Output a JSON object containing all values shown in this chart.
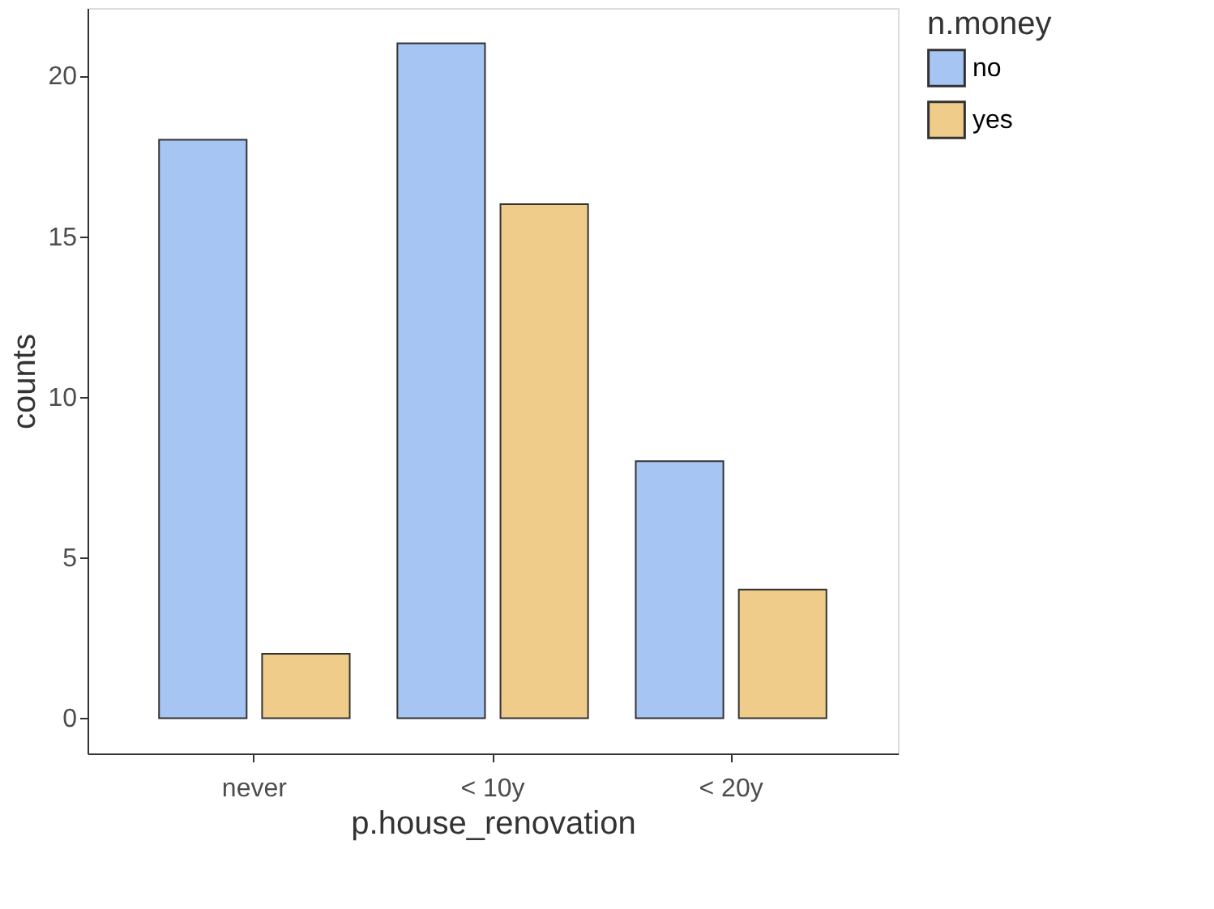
{
  "chart_data": {
    "type": "bar",
    "xlabel": "p.house_renovation",
    "ylabel": "counts",
    "legend_title": "n.money",
    "categories": [
      "never",
      "< 10y",
      "< 20y"
    ],
    "series": [
      {
        "name": "no",
        "color": "#a7c5f2",
        "values": [
          18,
          21,
          8
        ]
      },
      {
        "name": "yes",
        "color": "#f0cc8a",
        "values": [
          2,
          16,
          4
        ]
      }
    ],
    "ylim": [
      -1.1,
      22.1
    ],
    "yticks": [
      0,
      5,
      10,
      15,
      20
    ],
    "grid": false,
    "legend": "right"
  }
}
